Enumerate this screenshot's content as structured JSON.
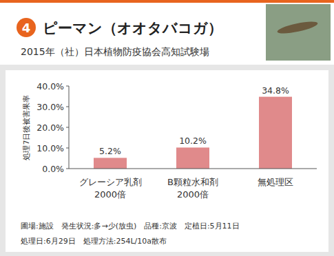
{
  "header": {
    "number": "4",
    "title": "ピーマン（オオタバコガ）",
    "subtitle": "2015年（社）日本植物防疫協会高知試験場"
  },
  "chart_data": {
    "type": "bar",
    "y_label": "処理7日後被害果率",
    "categories": [
      "グレーシア乳剤\n2000倍",
      "B顆粒水和剤\n2000倍",
      "無処理区"
    ],
    "values": [
      5.2,
      10.2,
      34.8
    ],
    "value_labels": [
      "5.2%",
      "10.2%",
      "34.8%"
    ],
    "color": "#e08a8b",
    "ylim": [
      0,
      40
    ],
    "yticks": [
      {
        "value": 0,
        "label": "0.0%"
      },
      {
        "value": 10,
        "label": "10.0%"
      },
      {
        "value": 20,
        "label": "20.0%"
      },
      {
        "value": 30,
        "label": "30.0%"
      },
      {
        "value": 40,
        "label": "40.0%"
      }
    ],
    "grid": false,
    "data_labels": true
  },
  "footer": {
    "lines": [
      "圃場:施設　発生状況:多→少(放虫)　品種:京波　定植日:5月11日",
      "処理日:6月29日　処理方法:254L/10a散布"
    ]
  }
}
